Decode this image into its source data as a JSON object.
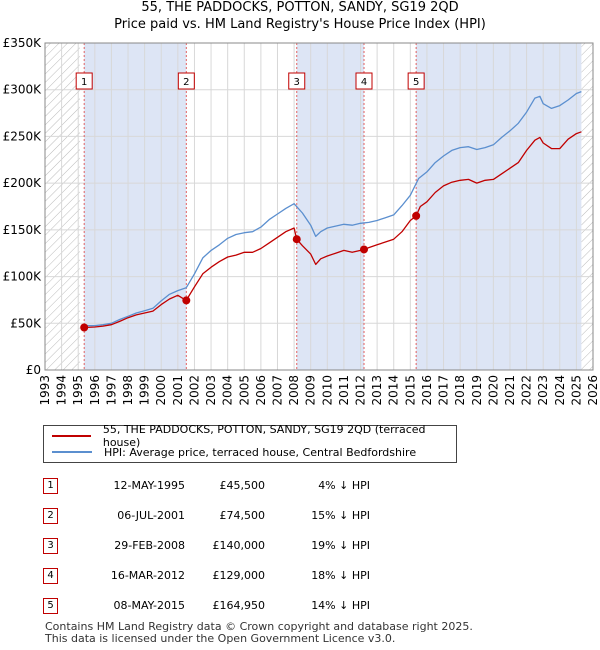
{
  "chart_data": {
    "type": "line",
    "title": "55, THE PADDOCKS, POTTON, SANDY, SG19 2QD",
    "subtitle": "Price paid vs. HM Land Registry's House Price Index (HPI)",
    "xlabel": "",
    "ylabel": "",
    "xlim": [
      1993,
      2026
    ],
    "ylim": [
      0,
      350000
    ],
    "x_ticks": [
      1993,
      1994,
      1995,
      1996,
      1997,
      1998,
      1999,
      2000,
      2001,
      2002,
      2003,
      2004,
      2005,
      2006,
      2007,
      2008,
      2009,
      2010,
      2011,
      2012,
      2013,
      2014,
      2015,
      2016,
      2017,
      2018,
      2019,
      2020,
      2021,
      2022,
      2023,
      2024,
      2025,
      2026
    ],
    "y_ticks": [
      {
        "value": 0,
        "label": "£0"
      },
      {
        "value": 50000,
        "label": "£50K"
      },
      {
        "value": 100000,
        "label": "£100K"
      },
      {
        "value": 150000,
        "label": "£150K"
      },
      {
        "value": 200000,
        "label": "£200K"
      },
      {
        "value": 250000,
        "label": "£250K"
      },
      {
        "value": 300000,
        "label": "£300K"
      },
      {
        "value": 350000,
        "label": "£350K"
      }
    ],
    "hatched_ranges": [
      [
        1993,
        1995.1
      ],
      [
        2025.3,
        2026
      ]
    ],
    "series": [
      {
        "name": "55, THE PADDOCKS, POTTON, SANDY, SG19 2QD (terraced house)",
        "color": "#c00000",
        "x": [
          1995.36,
          1996,
          1996.5,
          1997,
          1997.5,
          1998,
          1998.5,
          1999,
          1999.5,
          2000,
          2000.5,
          2001,
          2001.5,
          2002,
          2002.5,
          2003,
          2003.5,
          2004,
          2004.5,
          2005,
          2005.5,
          2006,
          2006.5,
          2007,
          2007.5,
          2008,
          2008.16,
          2008.5,
          2009,
          2009.3,
          2009.6,
          2010,
          2010.5,
          2011,
          2011.5,
          2012,
          2012.21,
          2012.5,
          2013,
          2013.5,
          2014,
          2014.5,
          2015,
          2015.35,
          2015.6,
          2016,
          2016.5,
          2017,
          2017.5,
          2018,
          2018.5,
          2019,
          2019.5,
          2020,
          2020.5,
          2021,
          2021.5,
          2022,
          2022.5,
          2022.8,
          2023,
          2023.5,
          2024,
          2024.5,
          2025,
          2025.3
        ],
        "values": [
          45500,
          46000,
          47000,
          48500,
          52000,
          56000,
          59000,
          61000,
          63000,
          70000,
          76000,
          80000,
          74500,
          89000,
          103000,
          110000,
          116000,
          121000,
          123000,
          126000,
          126000,
          130000,
          136000,
          142000,
          148000,
          152000,
          140000,
          133000,
          124000,
          113000,
          119000,
          122000,
          125000,
          128000,
          126000,
          128000,
          129000,
          131000,
          134000,
          137000,
          140000,
          148000,
          160000,
          164950,
          175000,
          180000,
          190000,
          197000,
          201000,
          203000,
          204000,
          200000,
          203000,
          204000,
          210000,
          216000,
          222000,
          235000,
          246000,
          249000,
          243000,
          237000,
          237000,
          247000,
          253000,
          255000
        ]
      },
      {
        "name": "HPI: Average price, terraced house, Central Bedfordshire",
        "color": "#5b8fcf",
        "x": [
          1995.36,
          1996,
          1996.5,
          1997,
          1997.5,
          1998,
          1998.5,
          1999,
          1999.5,
          2000,
          2000.5,
          2001,
          2001.5,
          2002,
          2002.5,
          2003,
          2003.5,
          2004,
          2004.5,
          2005,
          2005.5,
          2006,
          2006.5,
          2007,
          2007.5,
          2008,
          2008.5,
          2009,
          2009.3,
          2009.6,
          2010,
          2010.5,
          2011,
          2011.5,
          2012,
          2012.5,
          2013,
          2013.5,
          2014,
          2014.5,
          2015,
          2015.5,
          2016,
          2016.5,
          2017,
          2017.5,
          2018,
          2018.5,
          2019,
          2019.5,
          2020,
          2020.5,
          2021,
          2021.5,
          2022,
          2022.5,
          2022.8,
          2023,
          2023.5,
          2024,
          2024.5,
          2025,
          2025.3
        ],
        "values": [
          47500,
          47500,
          48500,
          50000,
          54000,
          57500,
          61000,
          63500,
          66000,
          74000,
          81000,
          85000,
          88000,
          103000,
          120000,
          128000,
          134000,
          141000,
          145000,
          147000,
          148000,
          153000,
          161000,
          167000,
          173000,
          178000,
          168000,
          155000,
          143000,
          148000,
          152000,
          154000,
          156000,
          155000,
          157000,
          158000,
          160000,
          163000,
          166000,
          176000,
          187000,
          205000,
          212000,
          222000,
          229000,
          235000,
          238000,
          239000,
          236000,
          238000,
          241000,
          249000,
          256000,
          264000,
          276000,
          291000,
          293000,
          285000,
          280000,
          283000,
          289000,
          296000,
          298000
        ]
      }
    ],
    "sales": [
      {
        "label": "1",
        "x": 1995.36,
        "value": 45500
      },
      {
        "label": "2",
        "x": 2001.51,
        "value": 74500
      },
      {
        "label": "3",
        "x": 2008.16,
        "value": 140000
      },
      {
        "label": "4",
        "x": 2012.21,
        "value": 129000
      },
      {
        "label": "5",
        "x": 2015.35,
        "value": 164950
      }
    ]
  },
  "legend": {
    "property": "55, THE PADDOCKS, POTTON, SANDY, SG19 2QD (terraced house)",
    "hpi": "HPI: Average price, terraced house, Central Bedfordshire"
  },
  "sales_table": [
    {
      "num": "1",
      "date": "12-MAY-1995",
      "price": "£45,500",
      "hpi": "4% ↓ HPI"
    },
    {
      "num": "2",
      "date": "06-JUL-2001",
      "price": "£74,500",
      "hpi": "15% ↓ HPI"
    },
    {
      "num": "3",
      "date": "29-FEB-2008",
      "price": "£140,000",
      "hpi": "19% ↓ HPI"
    },
    {
      "num": "4",
      "date": "16-MAR-2012",
      "price": "£129,000",
      "hpi": "18% ↓ HPI"
    },
    {
      "num": "5",
      "date": "08-MAY-2015",
      "price": "£164,950",
      "hpi": "14% ↓ HPI"
    }
  ],
  "footer": {
    "line1": "Contains HM Land Registry data © Crown copyright and database right 2025.",
    "line2": "This data is licensed under the Open Government Licence v3.0."
  },
  "colors": {
    "property": "#c00000",
    "hpi": "#5b8fcf",
    "highlight": "#dde5f5",
    "grid": "#d8d8d8"
  }
}
